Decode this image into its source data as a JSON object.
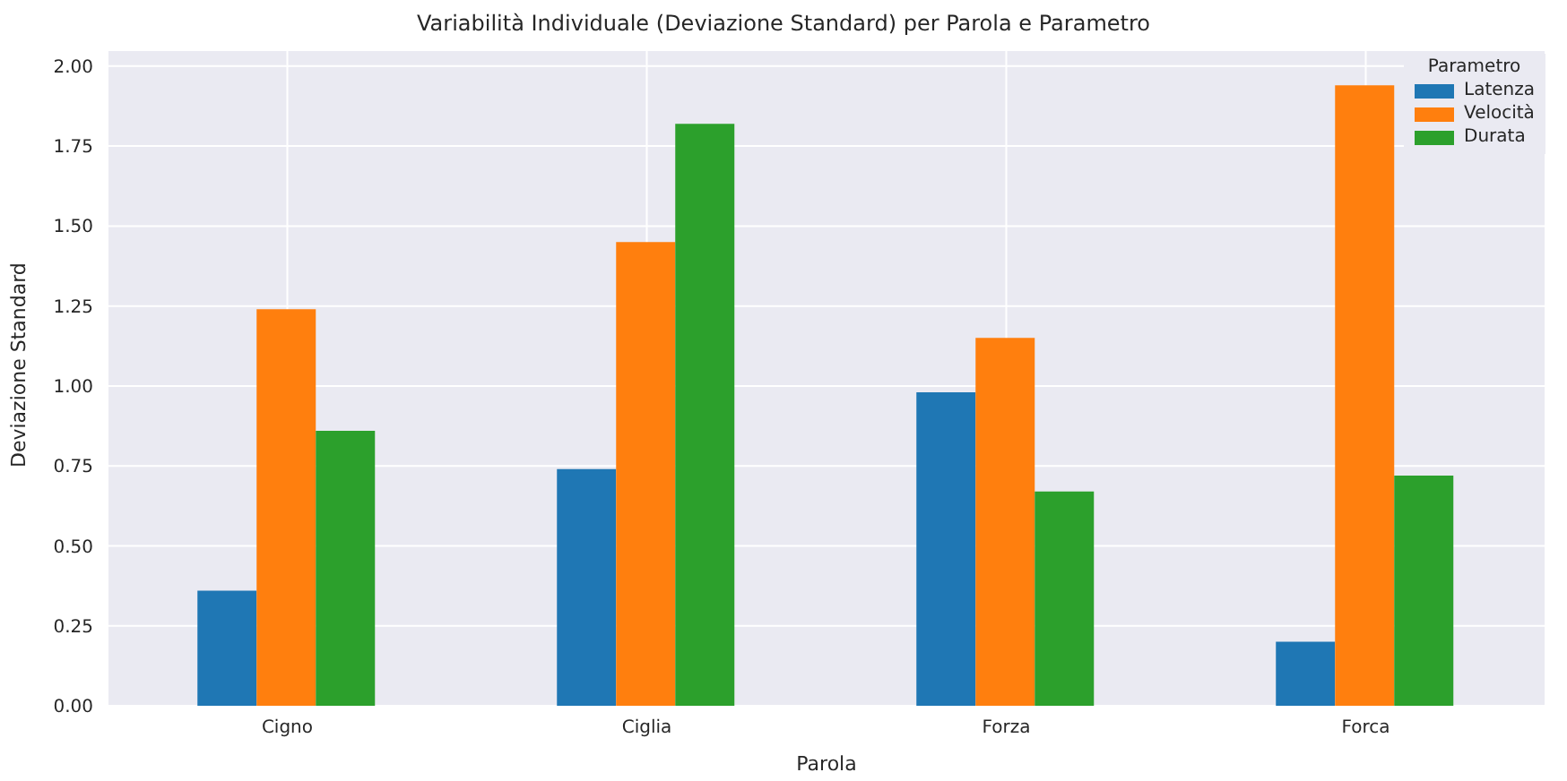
{
  "chart_data": {
    "type": "bar",
    "title": "Variabilità Individuale (Deviazione Standard) per Parola e Parametro",
    "xlabel": "Parola",
    "ylabel": "Deviazione Standard",
    "legend_title": "Parametro",
    "categories": [
      "Cigno",
      "Ciglia",
      "Forza",
      "Forca"
    ],
    "series": [
      {
        "name": "Latenza",
        "color": "#1f77b4",
        "values": [
          0.36,
          0.74,
          0.98,
          0.2
        ]
      },
      {
        "name": "Velocità",
        "color": "#ff7f0e",
        "values": [
          1.24,
          1.45,
          1.15,
          1.94
        ]
      },
      {
        "name": "Durata",
        "color": "#2ca02c",
        "values": [
          0.86,
          1.82,
          0.67,
          0.72
        ]
      }
    ],
    "ylim": [
      0,
      2.05
    ],
    "yticks": [
      {
        "value": 0,
        "label": "0.00"
      },
      {
        "value": 0.25,
        "label": "0.25"
      },
      {
        "value": 0.5,
        "label": "0.50"
      },
      {
        "value": 0.75,
        "label": "0.75"
      },
      {
        "value": 1,
        "label": "1.00"
      },
      {
        "value": 1.25,
        "label": "1.25"
      },
      {
        "value": 1.5,
        "label": "1.50"
      },
      {
        "value": 1.75,
        "label": "1.75"
      },
      {
        "value": 2,
        "label": "2.00"
      }
    ],
    "grid": true,
    "legend": "top right"
  }
}
